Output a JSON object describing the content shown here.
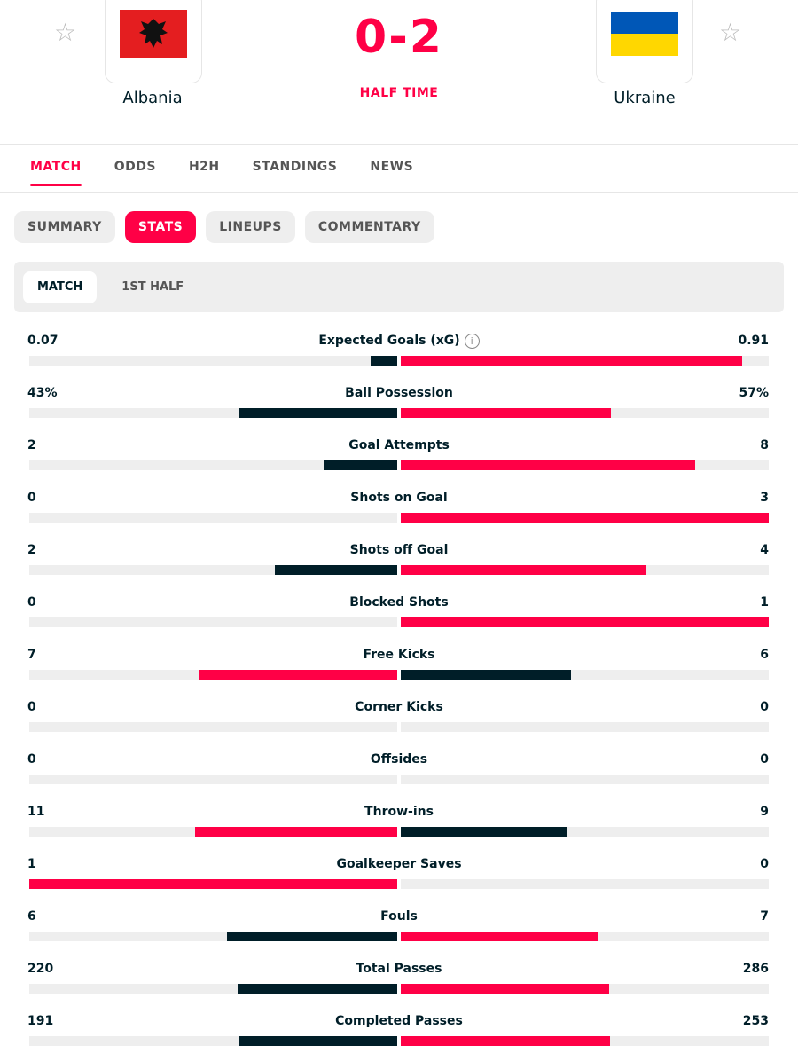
{
  "header": {
    "home": "Albania",
    "away": "Ukraine",
    "score": "0-2",
    "status": "HALF TIME"
  },
  "tabs": [
    "MATCH",
    "ODDS",
    "H2H",
    "STANDINGS",
    "NEWS"
  ],
  "subtabs": [
    "SUMMARY",
    "STATS",
    "LINEUPS",
    "COMMENTARY"
  ],
  "periods": [
    "MATCH",
    "1ST HALF"
  ],
  "colors": {
    "lead": "#ff0046",
    "trail": "#001e28"
  },
  "stats": [
    {
      "name": "Expected Goals (xG)",
      "values": [
        0.07,
        0.91
      ]
    },
    {
      "name": "Ball Possession",
      "values": [
        43,
        57
      ],
      "value_labels": [
        "43%",
        "57%"
      ]
    },
    {
      "name": "Goal Attempts",
      "values": [
        2,
        8
      ]
    },
    {
      "name": "Shots on Goal",
      "values": [
        0,
        3
      ]
    },
    {
      "name": "Shots off Goal",
      "values": [
        2,
        4
      ]
    },
    {
      "name": "Blocked Shots",
      "values": [
        0,
        1
      ]
    },
    {
      "name": "Free Kicks",
      "values": [
        7,
        6
      ]
    },
    {
      "name": "Corner Kicks",
      "values": [
        0,
        0
      ]
    },
    {
      "name": "Offsides",
      "values": [
        0,
        0
      ]
    },
    {
      "name": "Throw-ins",
      "values": [
        11,
        9
      ]
    },
    {
      "name": "Goalkeeper Saves",
      "values": [
        1,
        0
      ]
    },
    {
      "name": "Fouls",
      "values": [
        6,
        7
      ]
    },
    {
      "name": "Total Passes",
      "values": [
        220,
        286
      ]
    },
    {
      "name": "Completed Passes",
      "values": [
        191,
        253
      ]
    }
  ]
}
